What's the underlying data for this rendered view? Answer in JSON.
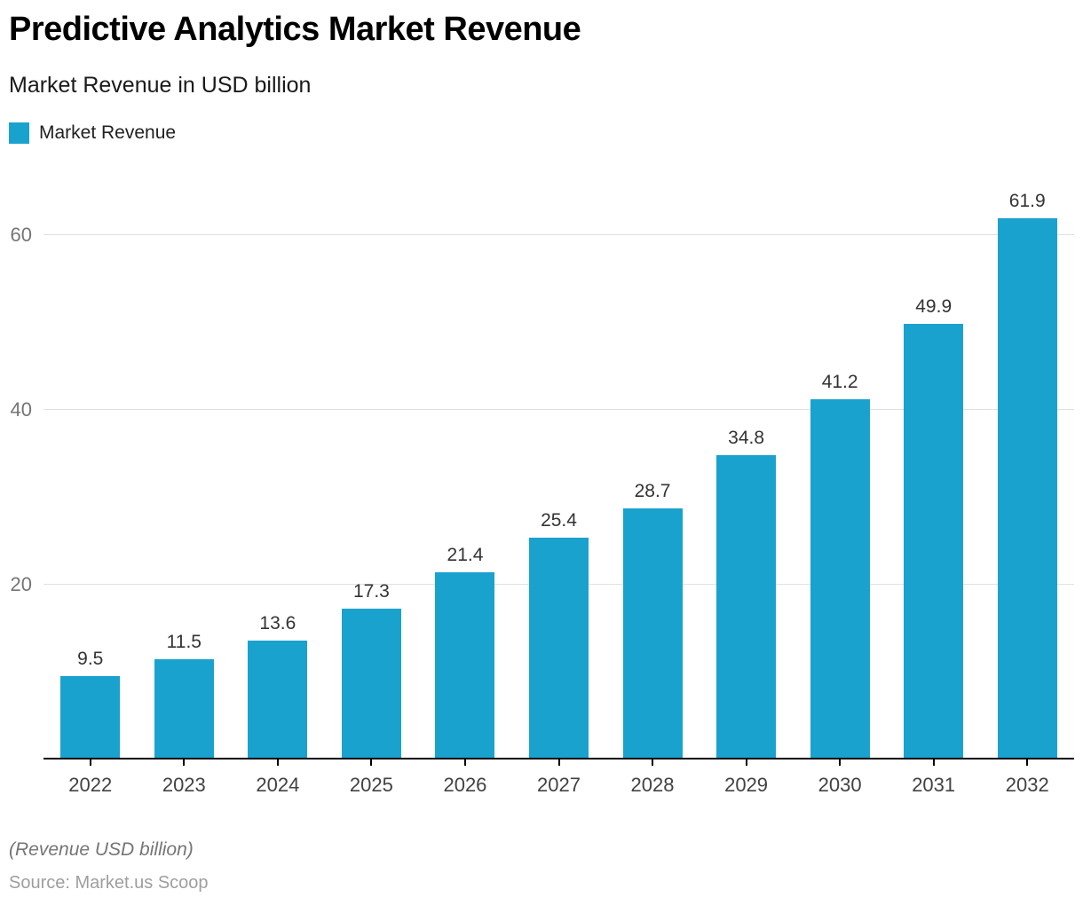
{
  "header": {
    "title": "Predictive Analytics Market Revenue",
    "subtitle": "Market Revenue in USD billion"
  },
  "legend": {
    "label": "Market Revenue"
  },
  "footer": {
    "note": "(Revenue USD billion)",
    "source": "Source: Market.us Scoop"
  },
  "colors": {
    "bar": "#1AA2CE",
    "gridline": "#e0e0e0",
    "axis": "#000000",
    "ytick_label": "#757575",
    "xtick_label": "#424242",
    "value_label": "#333333",
    "title": "#000000",
    "footnote": "#757575",
    "source": "#9e9e9e"
  },
  "chart_data": {
    "type": "bar",
    "title": "Predictive Analytics Market Revenue",
    "subtitle": "Market Revenue in USD billion",
    "series_name": "Market Revenue",
    "categories": [
      "2022",
      "2023",
      "2024",
      "2025",
      "2026",
      "2027",
      "2028",
      "2029",
      "2030",
      "2031",
      "2032"
    ],
    "values": [
      9.5,
      11.5,
      13.6,
      17.3,
      21.4,
      25.4,
      28.7,
      34.8,
      41.2,
      49.9,
      61.9
    ],
    "unit": "USD billion",
    "xlabel": "",
    "ylabel": "",
    "yticks": [
      20,
      40,
      60
    ],
    "ylim": [
      0,
      66.6
    ],
    "grid": "horizontal",
    "legend_position": "top-left",
    "bar_color": "#1AA2CE",
    "value_labels": "above bars, one decimal"
  }
}
